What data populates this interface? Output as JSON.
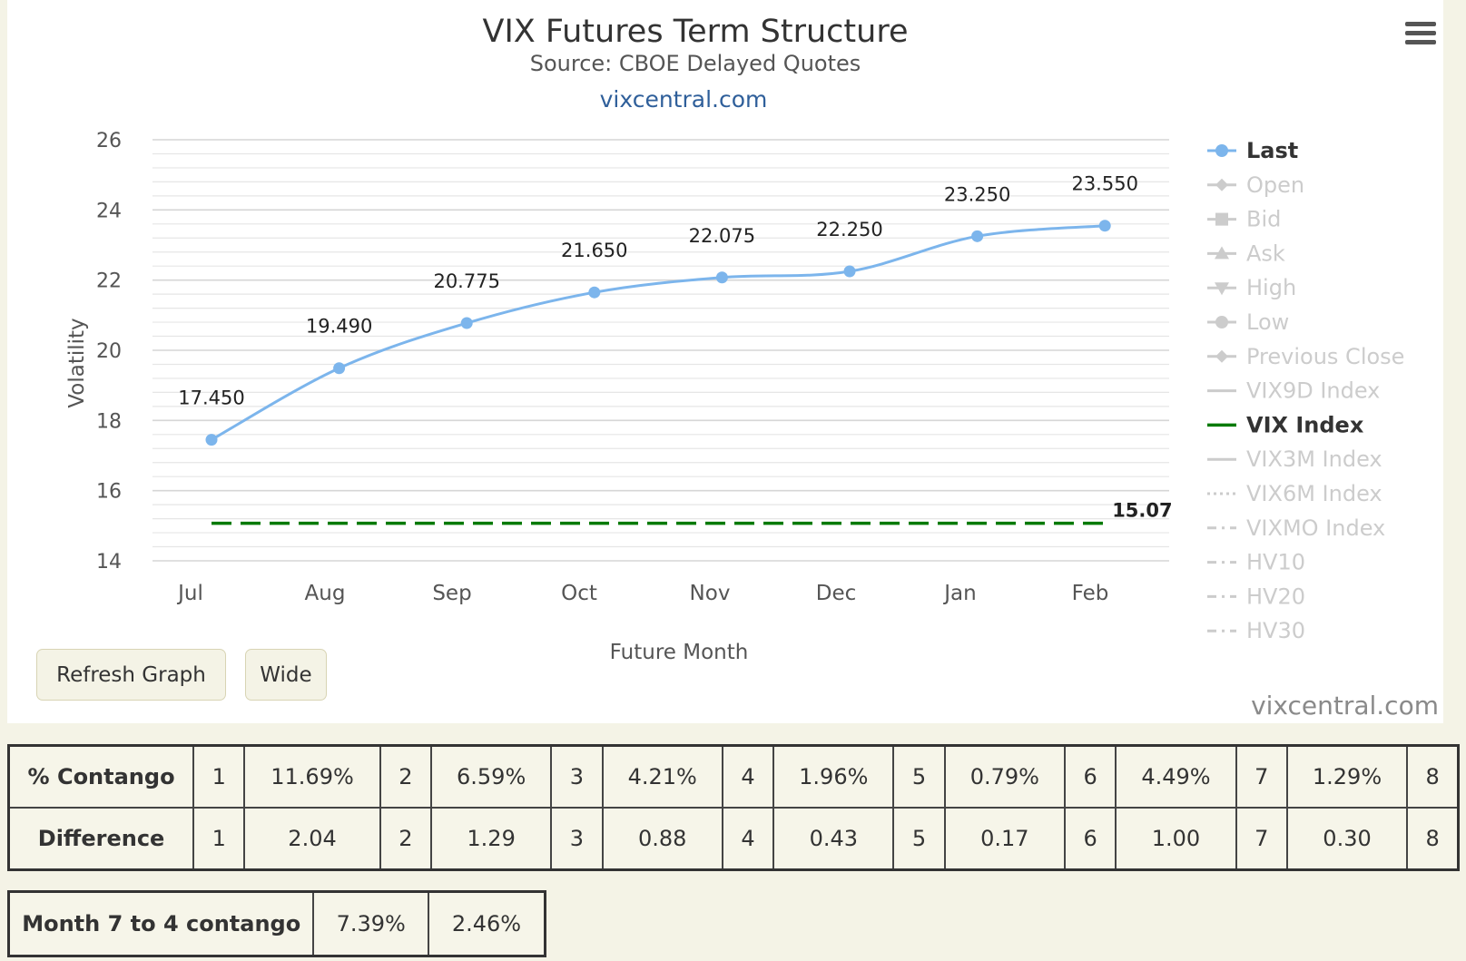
{
  "chart_data": {
    "type": "line",
    "title": "VIX Futures Term Structure",
    "subtitle": "Source: CBOE Delayed Quotes",
    "link": "vixcentral.com",
    "credits": "vixcentral.com",
    "xlabel": "Future Month",
    "ylabel": "Volatility",
    "categories": [
      "Jul",
      "Aug",
      "Sep",
      "Oct",
      "Nov",
      "Dec",
      "Jan",
      "Feb"
    ],
    "yticks": [
      14,
      16,
      18,
      20,
      22,
      24,
      26
    ],
    "ylim": [
      14,
      26
    ],
    "grid": true,
    "legend_position": "right",
    "series": [
      {
        "name": "Last",
        "values": [
          17.45,
          19.49,
          20.775,
          21.65,
          22.075,
          22.25,
          23.25,
          23.55
        ],
        "labels": [
          "17.450",
          "19.490",
          "20.775",
          "21.650",
          "22.075",
          "22.250",
          "23.250",
          "23.550"
        ],
        "color": "#7cb5ec",
        "style": "spline"
      },
      {
        "name": "VIX Index",
        "values": [
          15.07,
          15.07,
          15.07,
          15.07,
          15.07,
          15.07,
          15.07,
          15.07
        ],
        "end_label": "15.07",
        "color": "#007a00",
        "style": "dashed"
      }
    ],
    "legend": [
      {
        "name": "Last",
        "active": true,
        "marker": "circle",
        "color": "#7cb5ec"
      },
      {
        "name": "Open",
        "active": false,
        "marker": "diamond"
      },
      {
        "name": "Bid",
        "active": false,
        "marker": "square"
      },
      {
        "name": "Ask",
        "active": false,
        "marker": "triangle"
      },
      {
        "name": "High",
        "active": false,
        "marker": "triangle-down"
      },
      {
        "name": "Low",
        "active": false,
        "marker": "circle"
      },
      {
        "name": "Previous Close",
        "active": false,
        "marker": "diamond"
      },
      {
        "name": "VIX9D Index",
        "active": false,
        "marker": "line"
      },
      {
        "name": "VIX Index",
        "active": true,
        "marker": "line",
        "color": "#007a00"
      },
      {
        "name": "VIX3M Index",
        "active": false,
        "marker": "line"
      },
      {
        "name": "VIX6M Index",
        "active": false,
        "marker": "dotted"
      },
      {
        "name": "VIXMO Index",
        "active": false,
        "marker": "dashdot"
      },
      {
        "name": "HV10",
        "active": false,
        "marker": "dashdot"
      },
      {
        "name": "HV20",
        "active": false,
        "marker": "dashdot"
      },
      {
        "name": "HV30",
        "active": false,
        "marker": "dashdot"
      }
    ]
  },
  "buttons": {
    "refresh": "Refresh Graph",
    "wide": "Wide"
  },
  "contango_table": {
    "rows": [
      {
        "label": "% Contango",
        "cells": [
          "1",
          "11.69%",
          "2",
          "6.59%",
          "3",
          "4.21%",
          "4",
          "1.96%",
          "5",
          "0.79%",
          "6",
          "4.49%",
          "7",
          "1.29%",
          "8"
        ]
      },
      {
        "label": "Difference",
        "cells": [
          "1",
          "2.04",
          "2",
          "1.29",
          "3",
          "0.88",
          "4",
          "0.43",
          "5",
          "0.17",
          "6",
          "1.00",
          "7",
          "0.30",
          "8"
        ]
      }
    ]
  },
  "month7to4": {
    "label": "Month 7 to 4 contango",
    "pct": "7.39%",
    "diff": "2.46%"
  }
}
